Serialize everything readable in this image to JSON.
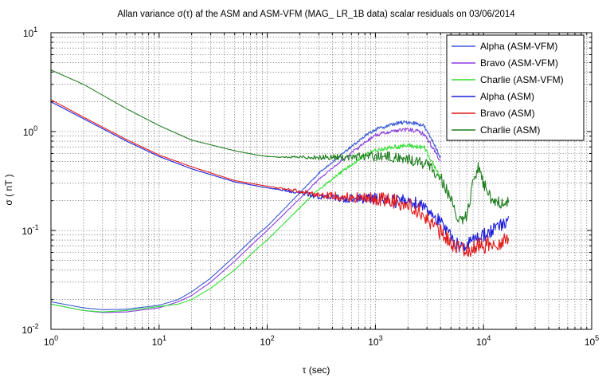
{
  "chart_data": {
    "type": "line",
    "title": "Allan variance σ(τ) af the ASM and ASM-VFM (MAG_ LR_1B data) scalar residuals on 03/06/2014",
    "xlabel": "τ (sec)",
    "ylabel": "σ ( nT )",
    "xscale": "log",
    "yscale": "log",
    "xlim": [
      1,
      100000
    ],
    "ylim": [
      0.01,
      10
    ],
    "grid": true,
    "legend_position": "top-right",
    "x_ticks": [
      {
        "value": 1,
        "mantissa": "10",
        "exp": "0"
      },
      {
        "value": 10,
        "mantissa": "10",
        "exp": "1"
      },
      {
        "value": 100,
        "mantissa": "10",
        "exp": "2"
      },
      {
        "value": 1000,
        "mantissa": "10",
        "exp": "3"
      },
      {
        "value": 10000,
        "mantissa": "10",
        "exp": "4"
      },
      {
        "value": 100000,
        "mantissa": "10",
        "exp": "5"
      }
    ],
    "y_ticks": [
      {
        "value": 0.01,
        "mantissa": "10",
        "exp": "-2"
      },
      {
        "value": 0.1,
        "mantissa": "10",
        "exp": "-1"
      },
      {
        "value": 1,
        "mantissa": "10",
        "exp": "0"
      },
      {
        "value": 10,
        "mantissa": "10",
        "exp": "1"
      }
    ],
    "series": [
      {
        "name": "Alpha (ASM-VFM)",
        "color": "#3b5bd6",
        "noise": 0.02,
        "x": [
          1,
          1.5,
          2,
          3,
          5,
          8,
          10,
          15,
          20,
          30,
          50,
          80,
          100,
          200,
          300,
          500,
          800,
          1000,
          1500,
          2000,
          2500,
          2800,
          3000,
          3500,
          4000
        ],
        "y": [
          0.019,
          0.0175,
          0.0165,
          0.0158,
          0.016,
          0.017,
          0.0175,
          0.02,
          0.024,
          0.033,
          0.055,
          0.09,
          0.11,
          0.24,
          0.38,
          0.6,
          0.9,
          1.05,
          1.2,
          1.25,
          1.2,
          1.15,
          1.0,
          0.75,
          0.55
        ]
      },
      {
        "name": "Bravo (ASM-VFM)",
        "color": "#8c3fe0",
        "noise": 0.02,
        "x": [
          1,
          1.5,
          2,
          3,
          5,
          8,
          10,
          15,
          20,
          30,
          50,
          80,
          100,
          200,
          300,
          500,
          800,
          1000,
          1500,
          2000,
          2500,
          2800,
          3000,
          3500,
          4000
        ],
        "y": [
          0.018,
          0.0165,
          0.0155,
          0.0148,
          0.015,
          0.016,
          0.0165,
          0.019,
          0.022,
          0.03,
          0.049,
          0.08,
          0.1,
          0.21,
          0.33,
          0.52,
          0.78,
          0.92,
          1.02,
          1.05,
          1.0,
          0.95,
          0.85,
          0.65,
          0.5
        ]
      },
      {
        "name": "Charlie (ASM-VFM)",
        "color": "#33e033",
        "noise": 0.025,
        "x": [
          1,
          1.5,
          2,
          3,
          5,
          8,
          10,
          15,
          20,
          30,
          50,
          80,
          100,
          200,
          300,
          500,
          800,
          1000,
          1500,
          2000,
          2500,
          2800,
          3000,
          3500,
          4000
        ],
        "y": [
          0.018,
          0.0165,
          0.0155,
          0.015,
          0.0155,
          0.0165,
          0.017,
          0.018,
          0.02,
          0.026,
          0.04,
          0.065,
          0.08,
          0.17,
          0.26,
          0.4,
          0.58,
          0.65,
          0.7,
          0.72,
          0.7,
          0.7,
          0.6,
          0.45,
          0.35
        ]
      },
      {
        "name": "Alpha (ASM)",
        "color": "#1d1dd9",
        "noise": 0.07,
        "x": [
          1,
          2,
          5,
          10,
          20,
          50,
          100,
          200,
          300,
          500,
          800,
          1000,
          1500,
          2000,
          2500,
          3000,
          4000,
          5000,
          6000,
          7000,
          8000,
          9000,
          10000,
          12000,
          14000,
          17000
        ],
        "y": [
          2.0,
          1.35,
          0.8,
          0.56,
          0.42,
          0.31,
          0.27,
          0.24,
          0.22,
          0.21,
          0.21,
          0.21,
          0.2,
          0.2,
          0.19,
          0.17,
          0.12,
          0.085,
          0.07,
          0.07,
          0.08,
          0.09,
          0.09,
          0.1,
          0.11,
          0.12
        ]
      },
      {
        "name": "Bravo (ASM)",
        "color": "#e31a1a",
        "noise": 0.08,
        "x": [
          1,
          2,
          5,
          10,
          20,
          50,
          100,
          200,
          300,
          500,
          800,
          1000,
          1500,
          2000,
          2500,
          3000,
          4000,
          5000,
          6000,
          7000,
          8000,
          9000,
          10000,
          12000,
          14000,
          17000
        ],
        "y": [
          2.1,
          1.4,
          0.83,
          0.58,
          0.44,
          0.32,
          0.28,
          0.25,
          0.23,
          0.22,
          0.21,
          0.21,
          0.2,
          0.18,
          0.16,
          0.13,
          0.095,
          0.075,
          0.065,
          0.065,
          0.065,
          0.07,
          0.07,
          0.075,
          0.075,
          0.08
        ]
      },
      {
        "name": "Charlie (ASM)",
        "color": "#1e7d1e",
        "noise": 0.06,
        "x": [
          1,
          2,
          5,
          10,
          20,
          50,
          80,
          100,
          150,
          200,
          300,
          500,
          800,
          1000,
          1500,
          2000,
          2500,
          3000,
          4000,
          5000,
          6000,
          7000,
          8000,
          9000,
          10000,
          12000,
          14000,
          17000
        ],
        "y": [
          4.2,
          3.0,
          1.7,
          1.15,
          0.82,
          0.64,
          0.58,
          0.56,
          0.55,
          0.55,
          0.55,
          0.55,
          0.56,
          0.56,
          0.55,
          0.52,
          0.5,
          0.46,
          0.35,
          0.2,
          0.12,
          0.14,
          0.3,
          0.45,
          0.3,
          0.2,
          0.19,
          0.2
        ]
      }
    ]
  }
}
